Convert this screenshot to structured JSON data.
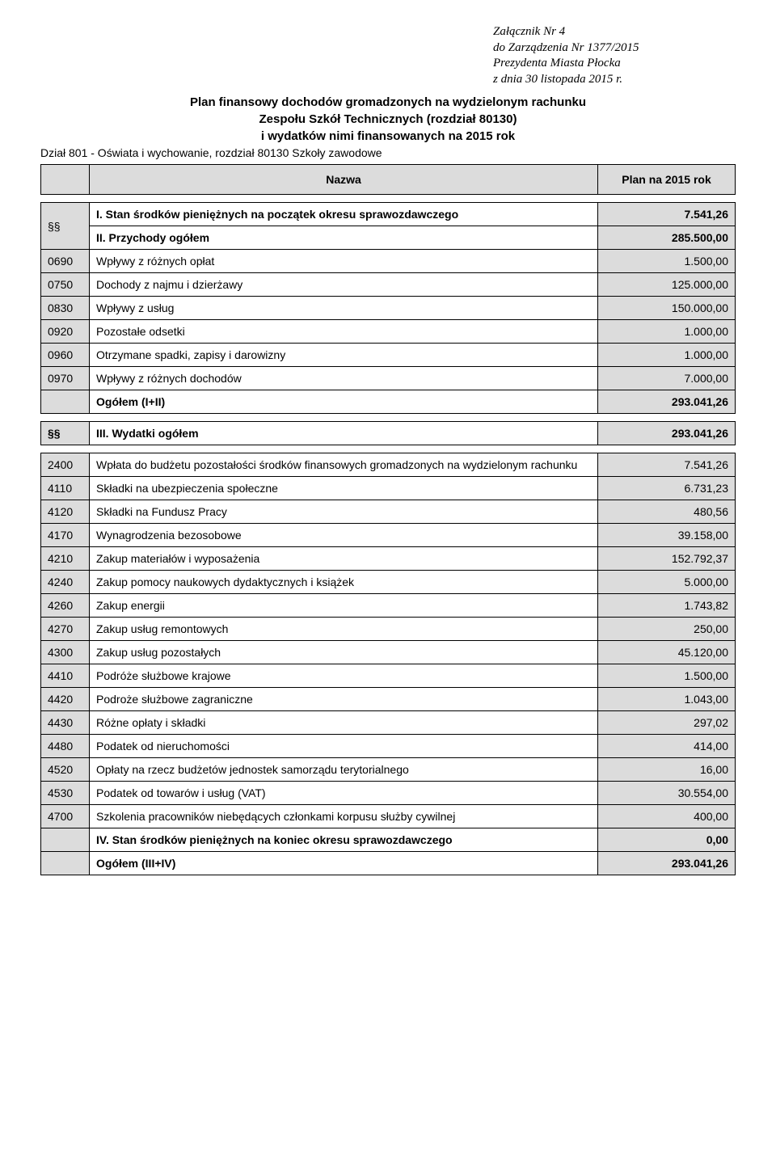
{
  "attachment": {
    "line1": "Załącznik Nr 4",
    "line2": "do Zarządzenia Nr 1377/2015",
    "line3": "Prezydenta Miasta Płocka",
    "line4": "z dnia 30 listopada 2015 r."
  },
  "title": {
    "line1": "Plan finansowy dochodów gromadzonych na wydzielonym rachunku",
    "line2": "Zespołu Szkół Technicznych (rozdział 80130)",
    "line3": "i wydatków nimi finansowanych na 2015 rok"
  },
  "dept_line": "Dział  801 - Oświata i wychowanie, rozdział 80130 Szkoły zawodowe",
  "headers": {
    "name": "Nazwa",
    "plan": "Plan na 2015 rok"
  },
  "section1": {
    "ss": "§§",
    "i_label": "I. Stan środków pieniężnych na początek okresu sprawozdawczego",
    "i_value": "7.541,26",
    "ii_label": "II. Przychody ogółem",
    "ii_value": "285.500,00"
  },
  "income_rows": [
    {
      "code": "0690",
      "name": "Wpływy z różnych opłat",
      "value": "1.500,00"
    },
    {
      "code": "0750",
      "name": "Dochody z najmu i dzierżawy",
      "value": "125.000,00"
    },
    {
      "code": "0830",
      "name": "Wpływy z usług",
      "value": "150.000,00"
    },
    {
      "code": "0920",
      "name": "Pozostałe odsetki",
      "value": "1.000,00"
    },
    {
      "code": "0960",
      "name": "Otrzymane spadki, zapisy i darowizny",
      "value": "1.000,00"
    },
    {
      "code": "0970",
      "name": "Wpływy z różnych dochodów",
      "value": "7.000,00"
    }
  ],
  "total1": {
    "label": "Ogółem (I+II)",
    "value": "293.041,26"
  },
  "section2": {
    "ss": "§§",
    "iii_label": "III. Wydatki ogółem",
    "iii_value": "293.041,26"
  },
  "expense_rows": [
    {
      "code": "2400",
      "name": "Wpłata do budżetu pozostałości środków finansowych gromadzonych na wydzielonym rachunku",
      "value": "7.541,26"
    },
    {
      "code": "4110",
      "name": "Składki na ubezpieczenia społeczne",
      "value": "6.731,23"
    },
    {
      "code": "4120",
      "name": "Składki na Fundusz Pracy",
      "value": "480,56"
    },
    {
      "code": "4170",
      "name": "Wynagrodzenia bezosobowe",
      "value": "39.158,00"
    },
    {
      "code": "4210",
      "name": "Zakup materiałów i wyposażenia",
      "value": "152.792,37"
    },
    {
      "code": "4240",
      "name": "Zakup pomocy naukowych dydaktycznych i książek",
      "value": "5.000,00"
    },
    {
      "code": "4260",
      "name": "Zakup energii",
      "value": "1.743,82"
    },
    {
      "code": "4270",
      "name": "Zakup usług remontowych",
      "value": "250,00"
    },
    {
      "code": "4300",
      "name": "Zakup usług pozostałych",
      "value": "45.120,00"
    },
    {
      "code": "4410",
      "name": "Podróże służbowe krajowe",
      "value": "1.500,00"
    },
    {
      "code": "4420",
      "name": "Podroże służbowe zagraniczne",
      "value": "1.043,00"
    },
    {
      "code": "4430",
      "name": "Różne opłaty i składki",
      "value": "297,02"
    },
    {
      "code": "4480",
      "name": "Podatek od nieruchomości",
      "value": "414,00"
    },
    {
      "code": "4520",
      "name": "Opłaty na rzecz budżetów jednostek samorządu terytorialnego",
      "value": "16,00"
    },
    {
      "code": "4530",
      "name": "Podatek od towarów i usług (VAT)",
      "value": "30.554,00"
    },
    {
      "code": "4700",
      "name": "Szkolenia pracowników niebędących członkami korpusu służby cywilnej",
      "value": "400,00"
    }
  ],
  "iv": {
    "label": "IV. Stan środków pieniężnych na koniec okresu sprawozdawczego",
    "value": "0,00"
  },
  "total2": {
    "label": "Ogółem (III+IV)",
    "value": "293.041,26"
  }
}
